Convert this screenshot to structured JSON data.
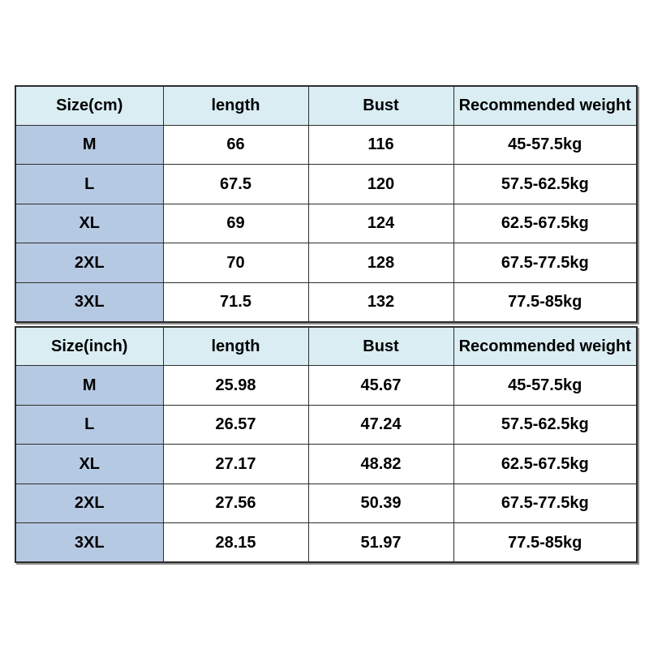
{
  "page": {
    "background": "#ffffff"
  },
  "colors": {
    "header_bg": "#d9edf3",
    "size_column_bg": "#b6c9e3",
    "cell_bg": "#ffffff",
    "border": "#2d2d2d",
    "shadow": "#8d8d8d",
    "text": "#000000"
  },
  "tables": [
    {
      "id": "size-chart-cm",
      "headers": [
        "Size(cm)",
        "length",
        "Bust",
        "Recommended weight"
      ],
      "rows": [
        [
          "M",
          "66",
          "116",
          "45-57.5kg"
        ],
        [
          "L",
          "67.5",
          "120",
          "57.5-62.5kg"
        ],
        [
          "XL",
          "69",
          "124",
          "62.5-67.5kg"
        ],
        [
          "2XL",
          "70",
          "128",
          "67.5-77.5kg"
        ],
        [
          "3XL",
          "71.5",
          "132",
          "77.5-85kg"
        ]
      ]
    },
    {
      "id": "size-chart-inch",
      "headers": [
        "Size(inch)",
        "length",
        "Bust",
        "Recommended weight"
      ],
      "rows": [
        [
          "M",
          "25.98",
          "45.67",
          "45-57.5kg"
        ],
        [
          "L",
          "26.57",
          "47.24",
          "57.5-62.5kg"
        ],
        [
          "XL",
          "27.17",
          "48.82",
          "62.5-67.5kg"
        ],
        [
          "2XL",
          "27.56",
          "50.39",
          "67.5-77.5kg"
        ],
        [
          "3XL",
          "28.15",
          "51.97",
          "77.5-85kg"
        ]
      ]
    }
  ],
  "chart_data": [
    {
      "type": "table",
      "title": "Size chart (cm)",
      "columns": [
        "Size(cm)",
        "length",
        "Bust",
        "Recommended weight"
      ],
      "rows": [
        [
          "M",
          66,
          116,
          "45-57.5kg"
        ],
        [
          "L",
          67.5,
          120,
          "57.5-62.5kg"
        ],
        [
          "XL",
          69,
          124,
          "62.5-67.5kg"
        ],
        [
          "2XL",
          70,
          128,
          "67.5-77.5kg"
        ],
        [
          "3XL",
          71.5,
          132,
          "77.5-85kg"
        ]
      ]
    },
    {
      "type": "table",
      "title": "Size chart (inch)",
      "columns": [
        "Size(inch)",
        "length",
        "Bust",
        "Recommended weight"
      ],
      "rows": [
        [
          "M",
          25.98,
          45.67,
          "45-57.5kg"
        ],
        [
          "L",
          26.57,
          47.24,
          "57.5-62.5kg"
        ],
        [
          "XL",
          27.17,
          48.82,
          "62.5-67.5kg"
        ],
        [
          "2XL",
          27.56,
          50.39,
          "67.5-77.5kg"
        ],
        [
          "3XL",
          28.15,
          51.97,
          "77.5-85kg"
        ]
      ]
    }
  ]
}
